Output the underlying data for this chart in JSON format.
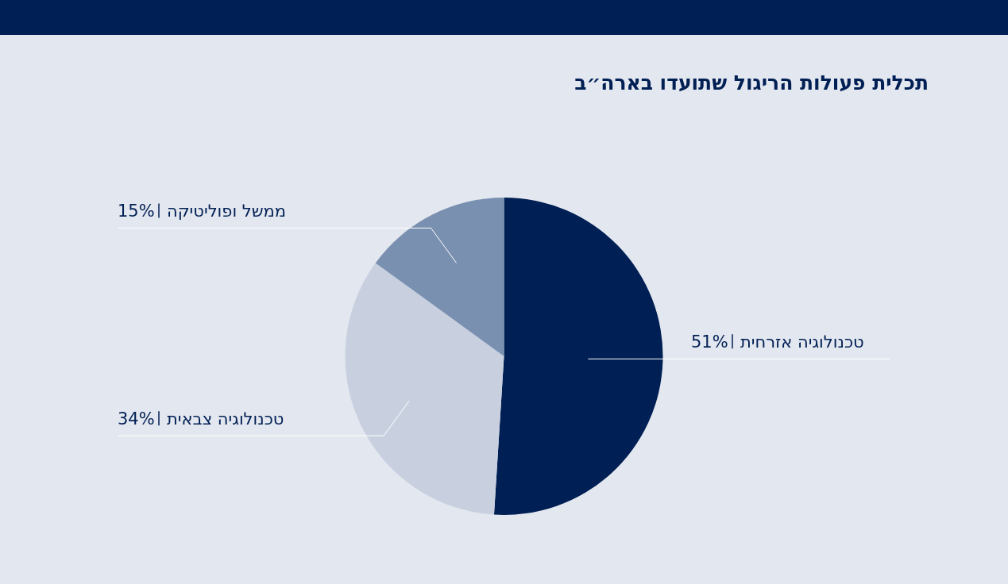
{
  "chart_data": {
    "type": "pie",
    "title": "תכלית פעולות הריגול שתועדו בארה״ב",
    "categories": [
      "טכנולוגיה אזרחית",
      "טכנולוגיה צבאית",
      "ממשל ופוליטיקה"
    ],
    "values": [
      51,
      34,
      15
    ],
    "colors": [
      "#001f54",
      "#c8d0e0",
      "#7a90b0"
    ],
    "value_labels": [
      "51%",
      "34%",
      "15%"
    ]
  }
}
